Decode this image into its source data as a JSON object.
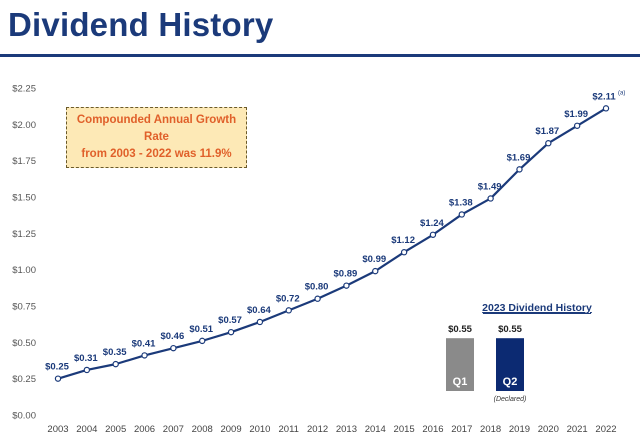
{
  "page": {
    "title": "Dividend History"
  },
  "cagr_note": {
    "line1": "Compounded Annual Growth Rate",
    "line2": "from 2003 - 2022 was 11.9%"
  },
  "colors": {
    "title": "#1b3a7a",
    "line": "#1b3a7a",
    "label": "#1b3a7a",
    "note_bg": "#fde9b6",
    "note_text": "#e0602a",
    "q1_bar": "#8a8a8a",
    "q2_bar": "#0c2a72"
  },
  "chart_data": [
    {
      "type": "line",
      "title": "",
      "xlabel": "",
      "ylabel": "",
      "x": [
        "2003",
        "2004",
        "2005",
        "2006",
        "2007",
        "2008",
        "2009",
        "2010",
        "2011",
        "2012",
        "2013",
        "2014",
        "2015",
        "2016",
        "2017",
        "2018",
        "2019",
        "2020",
        "2021",
        "2022"
      ],
      "values": [
        0.25,
        0.31,
        0.35,
        0.41,
        0.46,
        0.51,
        0.57,
        0.64,
        0.72,
        0.8,
        0.89,
        0.99,
        1.12,
        1.24,
        1.38,
        1.49,
        1.69,
        1.87,
        1.99,
        2.11
      ],
      "labels": [
        "$0.25",
        "$0.31",
        "$0.35",
        "$0.41",
        "$0.46",
        "$0.51",
        "$0.57",
        "$0.64",
        "$0.72",
        "$0.80",
        "$0.89",
        "$0.99",
        "$1.12",
        "$1.24",
        "$1.38",
        "$1.49",
        "$1.69",
        "$1.87",
        "$1.99",
        "$2.11"
      ],
      "last_label_footnote": "(a)",
      "y_ticks": [
        "$0.00",
        "$0.25",
        "$0.50",
        "$0.75",
        "$1.00",
        "$1.25",
        "$1.50",
        "$1.75",
        "$2.00",
        "$2.25"
      ],
      "ylim": [
        0,
        2.25
      ],
      "grid": false,
      "legend": "none",
      "markers": true
    },
    {
      "type": "bar",
      "title": "2023 Dividend History",
      "categories": [
        "Q1",
        "Q2"
      ],
      "values": [
        0.55,
        0.55
      ],
      "labels": [
        "$0.55",
        "$0.55"
      ],
      "notes": [
        "",
        "(Declared)"
      ]
    }
  ]
}
